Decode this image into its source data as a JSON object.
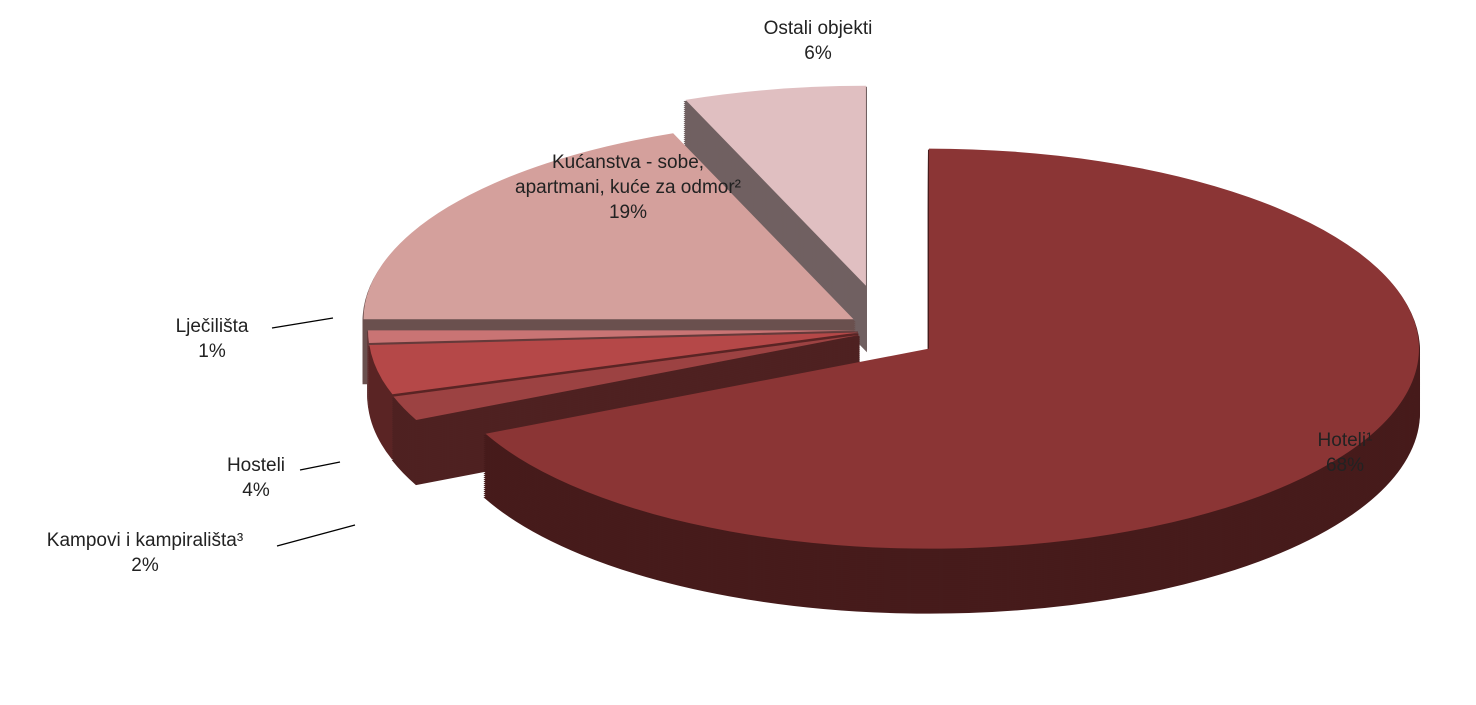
{
  "chart_data": {
    "type": "pie",
    "categories": [
      "Hoteli¹",
      "Kampovi i kampirališta³",
      "Hosteli",
      "Lječilišta",
      "Kućanstva - sobe, apartmani, kuće za odmor²",
      "Ostali objekti"
    ],
    "values": [
      68,
      2,
      4,
      1,
      19,
      6
    ],
    "value_labels": [
      "68%",
      "2%",
      "4%",
      "1%",
      "19%",
      "6%"
    ],
    "colors": [
      "#8b3535",
      "#9c4242",
      "#b54848",
      "#c97474",
      "#d4a09c",
      "#e0bfc1"
    ]
  }
}
